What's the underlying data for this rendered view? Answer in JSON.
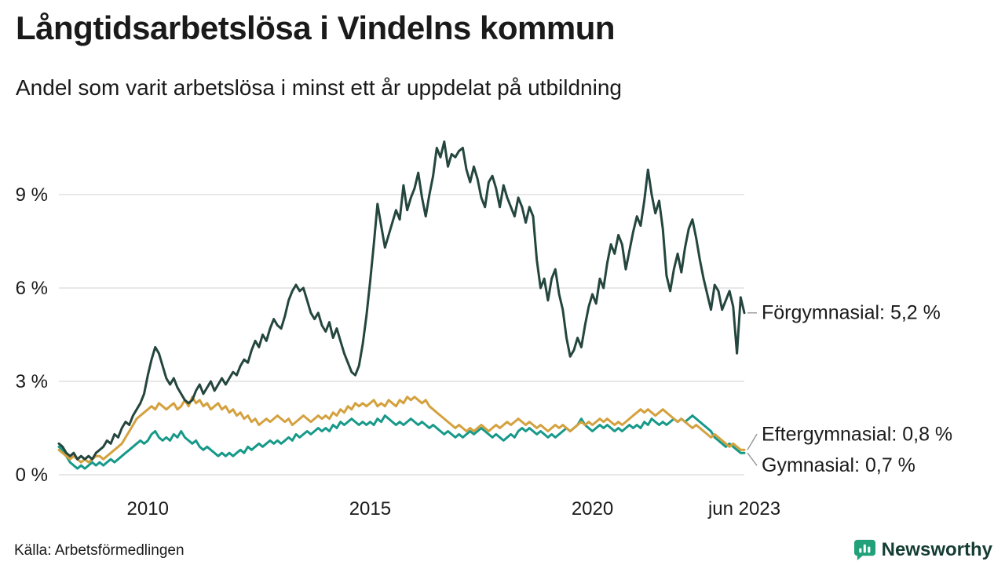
{
  "header": {
    "title": "Långtidsarbetslösa i Vindelns kommun",
    "subtitle": "Andel som varit arbetslösa i minst ett år uppdelat på utbildning"
  },
  "footer": {
    "source": "Källa: Arbetsförmedlingen",
    "brand": "Newsworthy"
  },
  "colors": {
    "grid": "#d9d9d9",
    "text": "#1a1a1a",
    "connector": "#9a9a9a",
    "brand_green": "#21a179",
    "brand_text": "#143c32"
  },
  "chart_data": {
    "type": "line",
    "unit": "%",
    "x_start": "2008-01",
    "x_end": "2023-06",
    "x_resolution": "monthly",
    "ylim": [
      0,
      11
    ],
    "grid": "horizontal",
    "yticks": [
      {
        "value": 0,
        "label": "0 %"
      },
      {
        "value": 3,
        "label": "3 %"
      },
      {
        "value": 6,
        "label": "6 %"
      },
      {
        "value": 9,
        "label": "9 %"
      }
    ],
    "xticks": [
      {
        "month_index": 24,
        "label": "2010"
      },
      {
        "month_index": 84,
        "label": "2015"
      },
      {
        "month_index": 144,
        "label": "2020"
      },
      {
        "month_index": 185,
        "label": "jun 2023"
      }
    ],
    "series": [
      {
        "name": "Förgymnasial",
        "end_label": "Förgymnasial: 5,2 %",
        "end_value": 5.2,
        "color": "#24463e",
        "values": [
          1.0,
          0.9,
          0.7,
          0.6,
          0.7,
          0.5,
          0.6,
          0.5,
          0.6,
          0.5,
          0.7,
          0.8,
          0.9,
          1.1,
          1.0,
          1.3,
          1.2,
          1.5,
          1.7,
          1.6,
          1.9,
          2.1,
          2.3,
          2.6,
          3.2,
          3.7,
          4.1,
          3.9,
          3.5,
          3.1,
          2.9,
          3.1,
          2.8,
          2.6,
          2.4,
          2.3,
          2.4,
          2.7,
          2.9,
          2.6,
          2.8,
          3.0,
          2.7,
          2.9,
          3.1,
          2.9,
          3.1,
          3.3,
          3.2,
          3.5,
          3.7,
          3.6,
          4.0,
          4.3,
          4.1,
          4.5,
          4.3,
          4.7,
          5.0,
          4.8,
          4.7,
          5.1,
          5.6,
          5.9,
          6.1,
          5.9,
          6.0,
          5.6,
          5.2,
          5.0,
          5.2,
          4.8,
          4.6,
          4.9,
          4.4,
          4.7,
          4.3,
          3.9,
          3.6,
          3.3,
          3.2,
          3.5,
          4.2,
          5.1,
          6.2,
          7.4,
          8.7,
          8.0,
          7.3,
          7.7,
          8.1,
          8.5,
          8.2,
          9.3,
          8.5,
          8.9,
          9.2,
          9.7,
          8.9,
          8.3,
          9.0,
          9.6,
          10.5,
          10.2,
          10.7,
          9.9,
          10.3,
          10.2,
          10.4,
          10.5,
          9.8,
          9.4,
          9.9,
          9.5,
          8.9,
          8.6,
          9.4,
          9.6,
          9.2,
          8.6,
          9.3,
          8.9,
          8.6,
          8.3,
          8.9,
          8.6,
          8.1,
          8.6,
          8.3,
          6.9,
          6.0,
          6.3,
          5.6,
          6.3,
          6.6,
          5.8,
          5.3,
          4.4,
          3.8,
          4.0,
          4.4,
          4.1,
          4.8,
          5.4,
          5.8,
          5.5,
          6.3,
          6.0,
          6.8,
          7.4,
          7.1,
          7.7,
          7.4,
          6.6,
          7.2,
          7.8,
          8.3,
          8.0,
          8.8,
          9.8,
          9.0,
          8.4,
          8.8,
          7.9,
          6.4,
          5.9,
          6.6,
          7.1,
          6.5,
          7.3,
          7.9,
          8.2,
          7.6,
          6.9,
          6.3,
          5.8,
          5.3,
          6.1,
          5.9,
          5.3,
          5.6,
          5.9,
          5.4,
          3.9,
          5.7,
          5.2
        ]
      },
      {
        "name": "Eftergymnasial",
        "end_label": "Eftergymnasial: 0,8 %",
        "end_value": 0.8,
        "color": "#d4a13e",
        "values": [
          0.8,
          0.7,
          0.6,
          0.5,
          0.6,
          0.5,
          0.4,
          0.5,
          0.4,
          0.5,
          0.6,
          0.6,
          0.5,
          0.6,
          0.7,
          0.8,
          0.9,
          1.0,
          1.2,
          1.4,
          1.6,
          1.8,
          1.9,
          2.0,
          2.1,
          2.2,
          2.1,
          2.3,
          2.2,
          2.1,
          2.2,
          2.3,
          2.1,
          2.2,
          2.4,
          2.2,
          2.5,
          2.3,
          2.4,
          2.2,
          2.3,
          2.1,
          2.2,
          2.3,
          2.1,
          2.2,
          2.0,
          2.1,
          1.9,
          2.0,
          1.8,
          1.9,
          1.7,
          1.8,
          1.6,
          1.7,
          1.8,
          1.7,
          1.8,
          1.9,
          1.8,
          1.7,
          1.8,
          1.6,
          1.7,
          1.8,
          1.9,
          1.8,
          1.7,
          1.8,
          1.9,
          1.8,
          1.9,
          1.8,
          2.0,
          1.9,
          2.1,
          2.0,
          2.2,
          2.1,
          2.3,
          2.2,
          2.3,
          2.2,
          2.3,
          2.4,
          2.2,
          2.3,
          2.2,
          2.4,
          2.3,
          2.2,
          2.4,
          2.3,
          2.5,
          2.4,
          2.5,
          2.4,
          2.3,
          2.4,
          2.2,
          2.1,
          2.0,
          1.9,
          1.8,
          1.7,
          1.6,
          1.5,
          1.6,
          1.5,
          1.4,
          1.5,
          1.4,
          1.5,
          1.6,
          1.5,
          1.4,
          1.5,
          1.6,
          1.5,
          1.6,
          1.7,
          1.6,
          1.7,
          1.8,
          1.7,
          1.6,
          1.7,
          1.6,
          1.5,
          1.6,
          1.5,
          1.4,
          1.5,
          1.6,
          1.5,
          1.6,
          1.5,
          1.4,
          1.5,
          1.6,
          1.7,
          1.6,
          1.7,
          1.6,
          1.7,
          1.8,
          1.7,
          1.8,
          1.7,
          1.6,
          1.7,
          1.6,
          1.7,
          1.8,
          1.9,
          2.0,
          2.1,
          2.0,
          2.1,
          2.0,
          1.9,
          2.0,
          2.1,
          2.0,
          1.9,
          1.8,
          1.7,
          1.8,
          1.7,
          1.6,
          1.5,
          1.6,
          1.5,
          1.4,
          1.3,
          1.2,
          1.3,
          1.2,
          1.1,
          1.0,
          0.9,
          1.0,
          0.9,
          0.8,
          0.8
        ]
      },
      {
        "name": "Gymnasial",
        "end_label": "Gymnasial: 0,7 %",
        "end_value": 0.7,
        "color": "#17998a",
        "values": [
          0.9,
          0.8,
          0.6,
          0.4,
          0.3,
          0.2,
          0.3,
          0.2,
          0.3,
          0.4,
          0.3,
          0.4,
          0.3,
          0.4,
          0.5,
          0.4,
          0.5,
          0.6,
          0.7,
          0.8,
          0.9,
          1.0,
          1.1,
          1.0,
          1.1,
          1.3,
          1.4,
          1.2,
          1.1,
          1.2,
          1.1,
          1.3,
          1.2,
          1.4,
          1.2,
          1.1,
          1.0,
          1.1,
          0.9,
          0.8,
          0.9,
          0.8,
          0.7,
          0.6,
          0.7,
          0.6,
          0.7,
          0.6,
          0.7,
          0.8,
          0.7,
          0.9,
          0.8,
          0.9,
          1.0,
          0.9,
          1.0,
          1.1,
          1.0,
          1.1,
          1.0,
          1.1,
          1.2,
          1.1,
          1.3,
          1.2,
          1.3,
          1.4,
          1.3,
          1.4,
          1.5,
          1.4,
          1.5,
          1.4,
          1.6,
          1.5,
          1.7,
          1.6,
          1.7,
          1.8,
          1.7,
          1.6,
          1.7,
          1.6,
          1.7,
          1.6,
          1.8,
          1.7,
          1.9,
          1.8,
          1.7,
          1.6,
          1.7,
          1.6,
          1.7,
          1.8,
          1.7,
          1.6,
          1.7,
          1.6,
          1.5,
          1.6,
          1.5,
          1.4,
          1.3,
          1.4,
          1.3,
          1.2,
          1.3,
          1.2,
          1.3,
          1.4,
          1.3,
          1.4,
          1.5,
          1.4,
          1.3,
          1.2,
          1.3,
          1.2,
          1.1,
          1.2,
          1.3,
          1.2,
          1.4,
          1.5,
          1.4,
          1.5,
          1.4,
          1.3,
          1.4,
          1.3,
          1.2,
          1.3,
          1.2,
          1.3,
          1.4,
          1.5,
          1.4,
          1.5,
          1.6,
          1.8,
          1.6,
          1.5,
          1.4,
          1.5,
          1.6,
          1.5,
          1.6,
          1.5,
          1.4,
          1.5,
          1.4,
          1.5,
          1.6,
          1.5,
          1.6,
          1.5,
          1.7,
          1.6,
          1.8,
          1.7,
          1.6,
          1.7,
          1.6,
          1.7,
          1.8,
          1.7,
          1.8,
          1.7,
          1.8,
          1.9,
          1.8,
          1.7,
          1.6,
          1.5,
          1.4,
          1.2,
          1.1,
          1.0,
          0.9,
          1.0,
          0.9,
          0.8,
          0.7,
          0.7
        ]
      }
    ]
  }
}
